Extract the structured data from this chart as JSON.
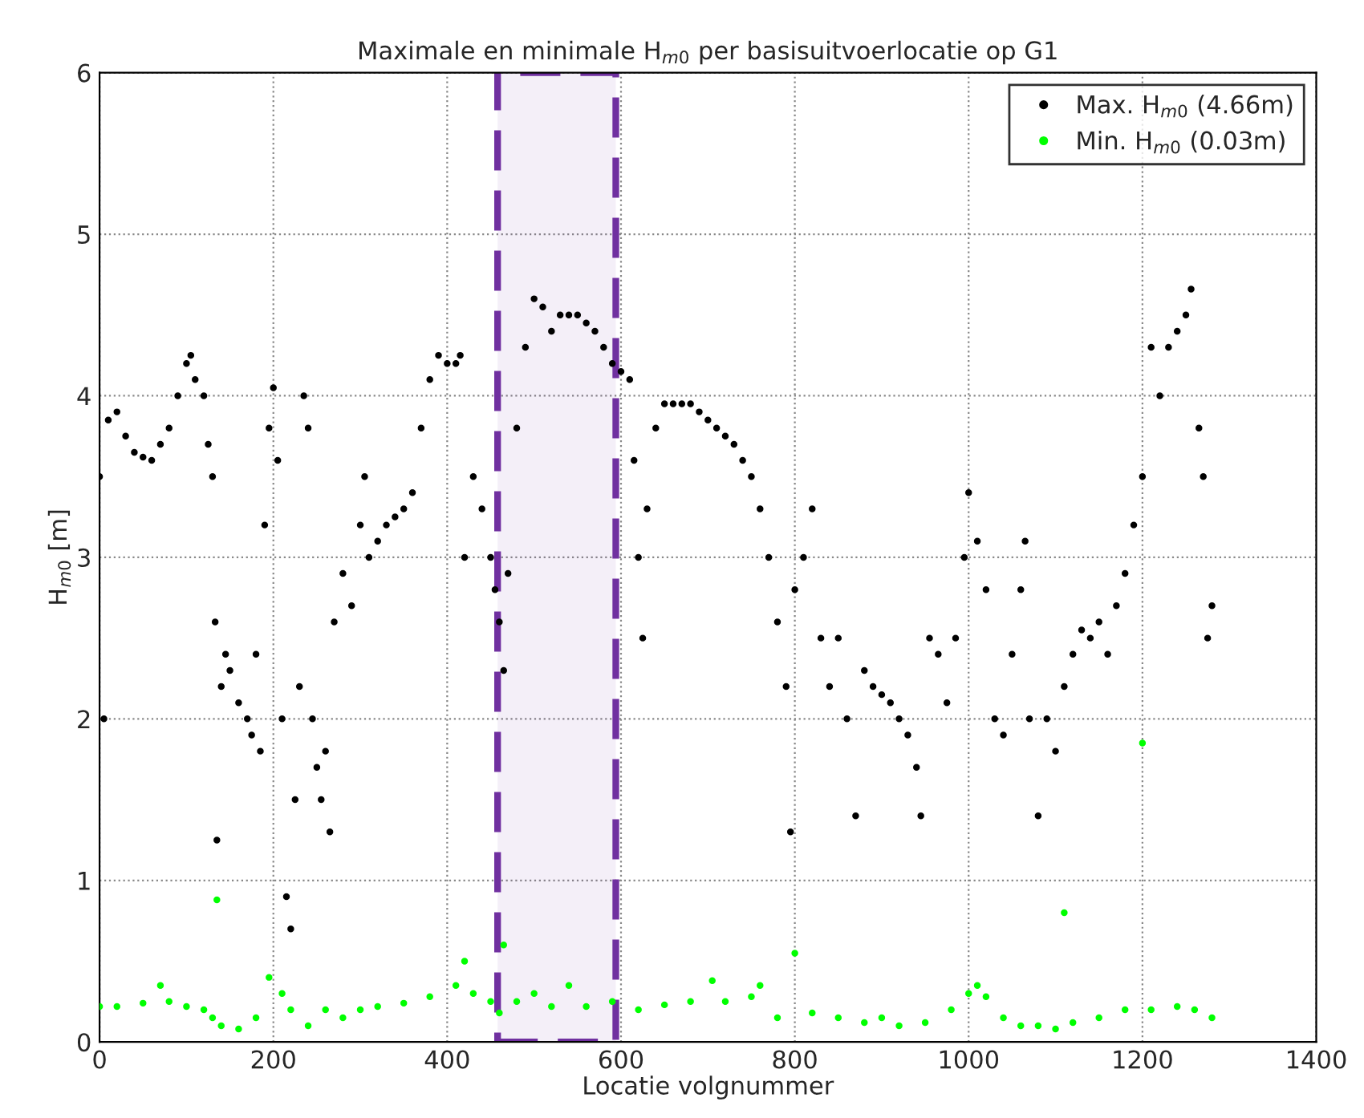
{
  "chart_data": {
    "type": "scatter",
    "title": "Maximale en minimale H$_{m0}$ per basisuitvoerlocatie op G1",
    "xlabel": "Locatie volgnummer",
    "ylabel": "H$_{m0}$ [m]",
    "xlim": [
      0,
      1400
    ],
    "xticks": [
      0,
      200,
      400,
      600,
      800,
      1000,
      1200,
      1400
    ],
    "ylim": [
      0,
      6
    ],
    "yticks": [
      0,
      1,
      2,
      3,
      4,
      5,
      6
    ],
    "grid": true,
    "legend": "top right",
    "marker": "circle",
    "bands": [
      {
        "axis": "x",
        "from": 458,
        "to": 594,
        "color": "#7030a0"
      }
    ],
    "series": [
      {
        "name": "Max. H$_{m0}$ (4.66m)",
        "color": "#000000",
        "x": [
          0,
          5,
          10,
          20,
          30,
          40,
          50,
          60,
          70,
          80,
          90,
          100,
          105,
          110,
          120,
          125,
          130,
          133,
          135,
          140,
          145,
          150,
          160,
          170,
          175,
          180,
          185,
          190,
          195,
          200,
          205,
          210,
          215,
          220,
          225,
          230,
          235,
          240,
          245,
          250,
          255,
          260,
          265,
          270,
          280,
          290,
          300,
          305,
          310,
          320,
          330,
          340,
          350,
          360,
          370,
          380,
          390,
          400,
          410,
          415,
          420,
          430,
          440,
          450,
          455,
          460,
          465,
          470,
          480,
          490,
          500,
          510,
          520,
          530,
          540,
          550,
          560,
          570,
          580,
          590,
          600,
          610,
          615,
          620,
          625,
          630,
          640,
          650,
          660,
          670,
          680,
          690,
          700,
          710,
          720,
          730,
          740,
          750,
          760,
          770,
          780,
          790,
          795,
          800,
          810,
          820,
          830,
          840,
          850,
          860,
          870,
          880,
          890,
          900,
          910,
          920,
          930,
          940,
          945,
          955,
          965,
          975,
          985,
          995,
          1000,
          1010,
          1020,
          1030,
          1040,
          1050,
          1060,
          1065,
          1070,
          1080,
          1090,
          1100,
          1110,
          1120,
          1130,
          1140,
          1150,
          1160,
          1170,
          1180,
          1190,
          1200,
          1210,
          1220,
          1230,
          1240,
          1250,
          1256,
          1265,
          1270,
          1275,
          1280
        ],
        "values": [
          3.5,
          2.0,
          3.85,
          3.9,
          3.75,
          3.65,
          3.62,
          3.6,
          3.7,
          3.8,
          4.0,
          4.2,
          4.25,
          4.1,
          4.0,
          3.7,
          3.5,
          2.6,
          1.25,
          2.2,
          2.4,
          2.3,
          2.1,
          2.0,
          1.9,
          2.4,
          1.8,
          3.2,
          3.8,
          4.05,
          3.6,
          2.0,
          0.9,
          0.7,
          1.5,
          2.2,
          4.0,
          3.8,
          2.0,
          1.7,
          1.5,
          1.8,
          1.3,
          2.6,
          2.9,
          2.7,
          3.2,
          3.5,
          3.0,
          3.1,
          3.2,
          3.25,
          3.3,
          3.4,
          3.8,
          4.1,
          4.25,
          4.2,
          4.2,
          4.25,
          3.0,
          3.5,
          3.3,
          3.0,
          2.8,
          2.6,
          2.3,
          2.9,
          3.8,
          4.3,
          4.6,
          4.55,
          4.4,
          4.5,
          4.5,
          4.5,
          4.45,
          4.4,
          4.3,
          4.2,
          4.15,
          4.1,
          3.6,
          3.0,
          2.5,
          3.3,
          3.8,
          3.95,
          3.95,
          3.95,
          3.95,
          3.9,
          3.85,
          3.8,
          3.75,
          3.7,
          3.6,
          3.5,
          3.3,
          3.0,
          2.6,
          2.2,
          1.3,
          2.8,
          3.0,
          3.3,
          2.5,
          2.2,
          2.5,
          2.0,
          1.4,
          2.3,
          2.2,
          2.15,
          2.1,
          2.0,
          1.9,
          1.7,
          1.4,
          2.5,
          2.4,
          2.1,
          2.5,
          3.0,
          3.4,
          3.1,
          2.8,
          2.0,
          1.9,
          2.4,
          2.8,
          3.1,
          2.0,
          1.4,
          2.0,
          1.8,
          2.2,
          2.4,
          2.55,
          2.5,
          2.6,
          2.4,
          2.7,
          2.9,
          3.2,
          3.5,
          4.3,
          4.0,
          4.3,
          4.4,
          4.5,
          4.66,
          3.8,
          3.5,
          2.5,
          2.7
        ]
      },
      {
        "name": "Min. H$_{m0}$ (0.03m)",
        "color": "#00ff00",
        "x": [
          0,
          20,
          50,
          70,
          80,
          100,
          120,
          130,
          135,
          140,
          160,
          180,
          195,
          210,
          220,
          240,
          260,
          280,
          300,
          320,
          350,
          380,
          410,
          420,
          430,
          450,
          460,
          465,
          480,
          500,
          520,
          540,
          560,
          590,
          620,
          650,
          680,
          705,
          720,
          750,
          760,
          780,
          800,
          820,
          850,
          880,
          900,
          920,
          950,
          980,
          1000,
          1010,
          1020,
          1040,
          1060,
          1080,
          1100,
          1110,
          1120,
          1150,
          1180,
          1200,
          1210,
          1240,
          1260,
          1280
        ],
        "values": [
          0.22,
          0.22,
          0.24,
          0.35,
          0.25,
          0.22,
          0.2,
          0.15,
          0.88,
          0.1,
          0.08,
          0.15,
          0.4,
          0.3,
          0.2,
          0.1,
          0.2,
          0.15,
          0.2,
          0.22,
          0.24,
          0.28,
          0.35,
          0.5,
          0.3,
          0.25,
          0.18,
          0.6,
          0.25,
          0.3,
          0.22,
          0.35,
          0.22,
          0.25,
          0.2,
          0.23,
          0.25,
          0.38,
          0.25,
          0.28,
          0.35,
          0.15,
          0.55,
          0.18,
          0.15,
          0.12,
          0.15,
          0.1,
          0.12,
          0.2,
          0.3,
          0.35,
          0.28,
          0.15,
          0.1,
          0.1,
          0.08,
          0.8,
          0.12,
          0.15,
          0.2,
          1.85,
          0.2,
          0.22,
          0.2,
          0.15
        ]
      }
    ]
  }
}
